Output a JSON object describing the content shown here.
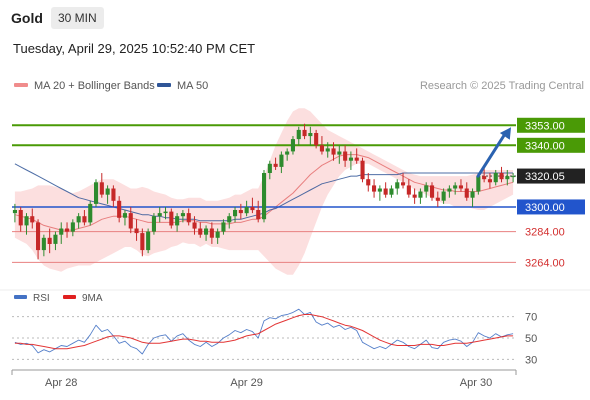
{
  "header": {
    "title": "Gold",
    "timeframe": "30 MIN",
    "timestamp": "Tuesday, April 29, 2025 10:52:40 PM CET",
    "credit": "Research © 2025 Trading Central"
  },
  "legend": {
    "items": [
      {
        "label": "MA 20 + Bollinger Bands",
        "color": "#f08c8c"
      },
      {
        "label": "MA 50",
        "color": "#2f5597"
      }
    ]
  },
  "indicator_legend": {
    "items": [
      {
        "label": "RSI",
        "color": "#4472c4"
      },
      {
        "label": "9MA",
        "color": "#e02020"
      }
    ]
  },
  "colors": {
    "bull": "#2e8b2e",
    "bear": "#c62828",
    "resistance": "#4a9a06",
    "support_strong": "#2255cc",
    "support": "#e88080",
    "current": "#222222",
    "band_fill": "#fbd4d4",
    "arrow": "#2a62b0"
  },
  "chart_data": [
    {
      "type": "candlestick",
      "ylim": [
        3250,
        3372
      ],
      "x_tick_labels": [
        "Apr 28",
        "Apr 29",
        "Apr 30"
      ],
      "levels": [
        {
          "label": "3353.00",
          "value": 3353,
          "kind": "resistance"
        },
        {
          "label": "3340.00",
          "value": 3340,
          "kind": "resistance"
        },
        {
          "label": "3320.05",
          "value": 3320.05,
          "kind": "current"
        },
        {
          "label": "3300.00",
          "value": 3300,
          "kind": "support_strong"
        },
        {
          "label": "3284.00",
          "value": 3284,
          "kind": "support"
        },
        {
          "label": "3264.00",
          "value": 3264,
          "kind": "support"
        }
      ],
      "projection": {
        "from": 3320,
        "to": 3353
      },
      "ohlc": [
        [
          3296,
          3302,
          3290,
          3298
        ],
        [
          3298,
          3300,
          3284,
          3288
        ],
        [
          3288,
          3296,
          3282,
          3294
        ],
        [
          3294,
          3299,
          3286,
          3290
        ],
        [
          3290,
          3292,
          3266,
          3272
        ],
        [
          3272,
          3282,
          3268,
          3280
        ],
        [
          3280,
          3286,
          3270,
          3276
        ],
        [
          3276,
          3284,
          3272,
          3282
        ],
        [
          3282,
          3290,
          3276,
          3286
        ],
        [
          3286,
          3290,
          3280,
          3284
        ],
        [
          3284,
          3292,
          3281,
          3290
        ],
        [
          3290,
          3296,
          3286,
          3294
        ],
        [
          3294,
          3298,
          3288,
          3290
        ],
        [
          3290,
          3304,
          3288,
          3302
        ],
        [
          3302,
          3318,
          3300,
          3316
        ],
        [
          3316,
          3322,
          3306,
          3308
        ],
        [
          3308,
          3314,
          3302,
          3312
        ],
        [
          3312,
          3314,
          3300,
          3304
        ],
        [
          3304,
          3307,
          3290,
          3293
        ],
        [
          3293,
          3298,
          3288,
          3296
        ],
        [
          3296,
          3300,
          3283,
          3286
        ],
        [
          3286,
          3292,
          3278,
          3283
        ],
        [
          3283,
          3286,
          3268,
          3272
        ],
        [
          3272,
          3286,
          3270,
          3284
        ],
        [
          3284,
          3296,
          3282,
          3294
        ],
        [
          3294,
          3300,
          3290,
          3296
        ],
        [
          3296,
          3300,
          3292,
          3297
        ],
        [
          3297,
          3299,
          3286,
          3288
        ],
        [
          3288,
          3296,
          3284,
          3294
        ],
        [
          3294,
          3298,
          3290,
          3296
        ],
        [
          3296,
          3299,
          3288,
          3290
        ],
        [
          3290,
          3294,
          3282,
          3286
        ],
        [
          3286,
          3290,
          3280,
          3282
        ],
        [
          3282,
          3288,
          3278,
          3286
        ],
        [
          3286,
          3290,
          3276,
          3280
        ],
        [
          3280,
          3286,
          3276,
          3284
        ],
        [
          3284,
          3292,
          3282,
          3290
        ],
        [
          3290,
          3296,
          3286,
          3294
        ],
        [
          3294,
          3300,
          3290,
          3298
        ],
        [
          3298,
          3302,
          3292,
          3296
        ],
        [
          3296,
          3304,
          3294,
          3300
        ],
        [
          3300,
          3306,
          3296,
          3298
        ],
        [
          3298,
          3304,
          3290,
          3292
        ],
        [
          3292,
          3324,
          3290,
          3322
        ],
        [
          3322,
          3330,
          3318,
          3328
        ],
        [
          3328,
          3332,
          3324,
          3326
        ],
        [
          3326,
          3336,
          3322,
          3334
        ],
        [
          3334,
          3338,
          3330,
          3336
        ],
        [
          3336,
          3346,
          3334,
          3344
        ],
        [
          3344,
          3352,
          3340,
          3350
        ],
        [
          3350,
          3354,
          3344,
          3346
        ],
        [
          3346,
          3352,
          3340,
          3348
        ],
        [
          3348,
          3350,
          3338,
          3340
        ],
        [
          3340,
          3346,
          3334,
          3336
        ],
        [
          3336,
          3342,
          3332,
          3338
        ],
        [
          3338,
          3342,
          3330,
          3334
        ],
        [
          3334,
          3340,
          3328,
          3336
        ],
        [
          3336,
          3340,
          3326,
          3330
        ],
        [
          3330,
          3336,
          3324,
          3332
        ],
        [
          3332,
          3338,
          3328,
          3330
        ],
        [
          3330,
          3332,
          3316,
          3318
        ],
        [
          3318,
          3322,
          3310,
          3314
        ],
        [
          3314,
          3318,
          3306,
          3310
        ],
        [
          3310,
          3314,
          3304,
          3312
        ],
        [
          3312,
          3316,
          3306,
          3308
        ],
        [
          3308,
          3314,
          3306,
          3312
        ],
        [
          3312,
          3318,
          3308,
          3316
        ],
        [
          3316,
          3322,
          3312,
          3314
        ],
        [
          3314,
          3318,
          3306,
          3308
        ],
        [
          3308,
          3312,
          3302,
          3306
        ],
        [
          3306,
          3312,
          3302,
          3310
        ],
        [
          3310,
          3316,
          3306,
          3314
        ],
        [
          3314,
          3316,
          3304,
          3306
        ],
        [
          3306,
          3310,
          3300,
          3304
        ],
        [
          3304,
          3312,
          3302,
          3310
        ],
        [
          3310,
          3314,
          3306,
          3312
        ],
        [
          3312,
          3316,
          3308,
          3314
        ],
        [
          3314,
          3318,
          3310,
          3312
        ],
        [
          3312,
          3316,
          3304,
          3306
        ],
        [
          3306,
          3312,
          3300,
          3310
        ],
        [
          3310,
          3322,
          3308,
          3320
        ],
        [
          3320,
          3326,
          3316,
          3318
        ],
        [
          3318,
          3322,
          3312,
          3316
        ],
        [
          3316,
          3324,
          3314,
          3322
        ],
        [
          3322,
          3326,
          3316,
          3318
        ],
        [
          3318,
          3324,
          3314,
          3320
        ],
        [
          3320,
          3322,
          3316,
          3320
        ]
      ],
      "ma20": [
        3295,
        3294,
        3293,
        3292,
        3290,
        3288,
        3287,
        3286,
        3285,
        3285,
        3285,
        3286,
        3287,
        3288,
        3290,
        3292,
        3293,
        3294,
        3294,
        3294,
        3293,
        3292,
        3291,
        3290,
        3290,
        3290,
        3290,
        3290,
        3290,
        3291,
        3291,
        3291,
        3290,
        3290,
        3289,
        3289,
        3289,
        3289,
        3290,
        3290,
        3291,
        3292,
        3292,
        3294,
        3297,
        3300,
        3303,
        3306,
        3309,
        3313,
        3317,
        3321,
        3324,
        3327,
        3329,
        3331,
        3333,
        3334,
        3334,
        3334,
        3333,
        3332,
        3330,
        3328,
        3326,
        3324,
        3322,
        3320,
        3318,
        3316,
        3315,
        3314,
        3313,
        3312,
        3311,
        3311,
        3310,
        3310,
        3310,
        3310,
        3310,
        3311,
        3312,
        3313,
        3314,
        3315,
        3316
      ],
      "ma50": [
        3328,
        3326,
        3324,
        3322,
        3320,
        3318,
        3316,
        3314,
        3312,
        3310,
        3308,
        3306,
        3305,
        3304,
        3303,
        3302,
        3301,
        3300,
        3299,
        3298,
        3297,
        3296,
        3295,
        3295,
        3294,
        3294,
        3293,
        3293,
        3292,
        3292,
        3292,
        3292,
        3291,
        3291,
        3291,
        3291,
        3291,
        3291,
        3292,
        3292,
        3293,
        3294,
        3295,
        3296,
        3298,
        3299,
        3301,
        3303,
        3305,
        3307,
        3309,
        3311,
        3313,
        3315,
        3316,
        3317,
        3318,
        3319,
        3320,
        3320,
        3321,
        3321,
        3321,
        3321,
        3321,
        3321,
        3321,
        3322,
        3322,
        3322,
        3322,
        3322,
        3322,
        3322,
        3322,
        3322,
        3322,
        3322,
        3322,
        3322,
        3322,
        3322,
        3322,
        3322,
        3322,
        3322,
        3322
      ],
      "bb_upper": [
        3310,
        3310,
        3311,
        3312,
        3314,
        3314,
        3314,
        3313,
        3312,
        3310,
        3309,
        3310,
        3312,
        3314,
        3316,
        3318,
        3318,
        3318,
        3316,
        3314,
        3312,
        3312,
        3313,
        3312,
        3310,
        3309,
        3308,
        3306,
        3305,
        3305,
        3306,
        3306,
        3306,
        3304,
        3304,
        3304,
        3305,
        3306,
        3308,
        3308,
        3310,
        3312,
        3312,
        3320,
        3330,
        3340,
        3348,
        3356,
        3362,
        3364,
        3364,
        3362,
        3358,
        3354,
        3350,
        3348,
        3346,
        3344,
        3342,
        3340,
        3338,
        3336,
        3334,
        3332,
        3330,
        3328,
        3326,
        3324,
        3322,
        3321,
        3320,
        3320,
        3320,
        3320,
        3320,
        3320,
        3320,
        3320,
        3320,
        3321,
        3322,
        3324,
        3324,
        3324,
        3324,
        3324,
        3324
      ],
      "bb_lower": [
        3280,
        3278,
        3276,
        3272,
        3266,
        3262,
        3260,
        3259,
        3258,
        3260,
        3261,
        3262,
        3262,
        3262,
        3264,
        3266,
        3268,
        3270,
        3272,
        3274,
        3274,
        3272,
        3269,
        3268,
        3270,
        3271,
        3272,
        3274,
        3275,
        3277,
        3276,
        3276,
        3274,
        3276,
        3274,
        3274,
        3273,
        3272,
        3272,
        3272,
        3272,
        3272,
        3272,
        3268,
        3264,
        3260,
        3258,
        3256,
        3256,
        3262,
        3270,
        3280,
        3290,
        3300,
        3308,
        3314,
        3320,
        3324,
        3326,
        3328,
        3328,
        3328,
        3326,
        3324,
        3322,
        3320,
        3318,
        3316,
        3314,
        3311,
        3310,
        3308,
        3306,
        3304,
        3302,
        3302,
        3300,
        3300,
        3300,
        3299,
        3298,
        3298,
        3300,
        3302,
        3304,
        3306,
        3308
      ]
    },
    {
      "type": "line",
      "ylim": [
        20,
        80
      ],
      "y_ticks": [
        30,
        50,
        70
      ],
      "series": [
        {
          "name": "RSI",
          "values": [
            46,
            44,
            45,
            43,
            36,
            39,
            37,
            40,
            43,
            42,
            45,
            48,
            46,
            53,
            62,
            56,
            58,
            52,
            45,
            47,
            42,
            40,
            35,
            44,
            50,
            52,
            53,
            47,
            52,
            54,
            48,
            44,
            42,
            46,
            42,
            45,
            50,
            53,
            57,
            55,
            58,
            56,
            50,
            66,
            69,
            68,
            71,
            72,
            74,
            77,
            72,
            74,
            65,
            62,
            64,
            60,
            62,
            58,
            60,
            57,
            46,
            43,
            40,
            42,
            40,
            44,
            48,
            46,
            42,
            40,
            44,
            48,
            41,
            40,
            46,
            48,
            49,
            47,
            42,
            46,
            55,
            52,
            50,
            54,
            51,
            53,
            54
          ]
        },
        {
          "name": "9MA",
          "values": [
            45,
            45,
            44,
            44,
            43,
            42,
            41,
            40,
            40,
            40,
            41,
            42,
            43,
            45,
            47,
            49,
            51,
            52,
            52,
            51,
            50,
            48,
            46,
            45,
            45,
            45,
            46,
            47,
            48,
            49,
            49,
            48,
            47,
            47,
            46,
            46,
            46,
            47,
            48,
            50,
            52,
            53,
            54,
            57,
            60,
            63,
            65,
            67,
            69,
            71,
            72,
            72,
            71,
            70,
            68,
            66,
            64,
            62,
            61,
            59,
            57,
            54,
            51,
            48,
            46,
            44,
            43,
            43,
            43,
            43,
            44,
            44,
            44,
            43,
            43,
            44,
            45,
            45,
            45,
            46,
            47,
            48,
            49,
            50,
            51,
            52,
            52
          ]
        }
      ]
    }
  ]
}
